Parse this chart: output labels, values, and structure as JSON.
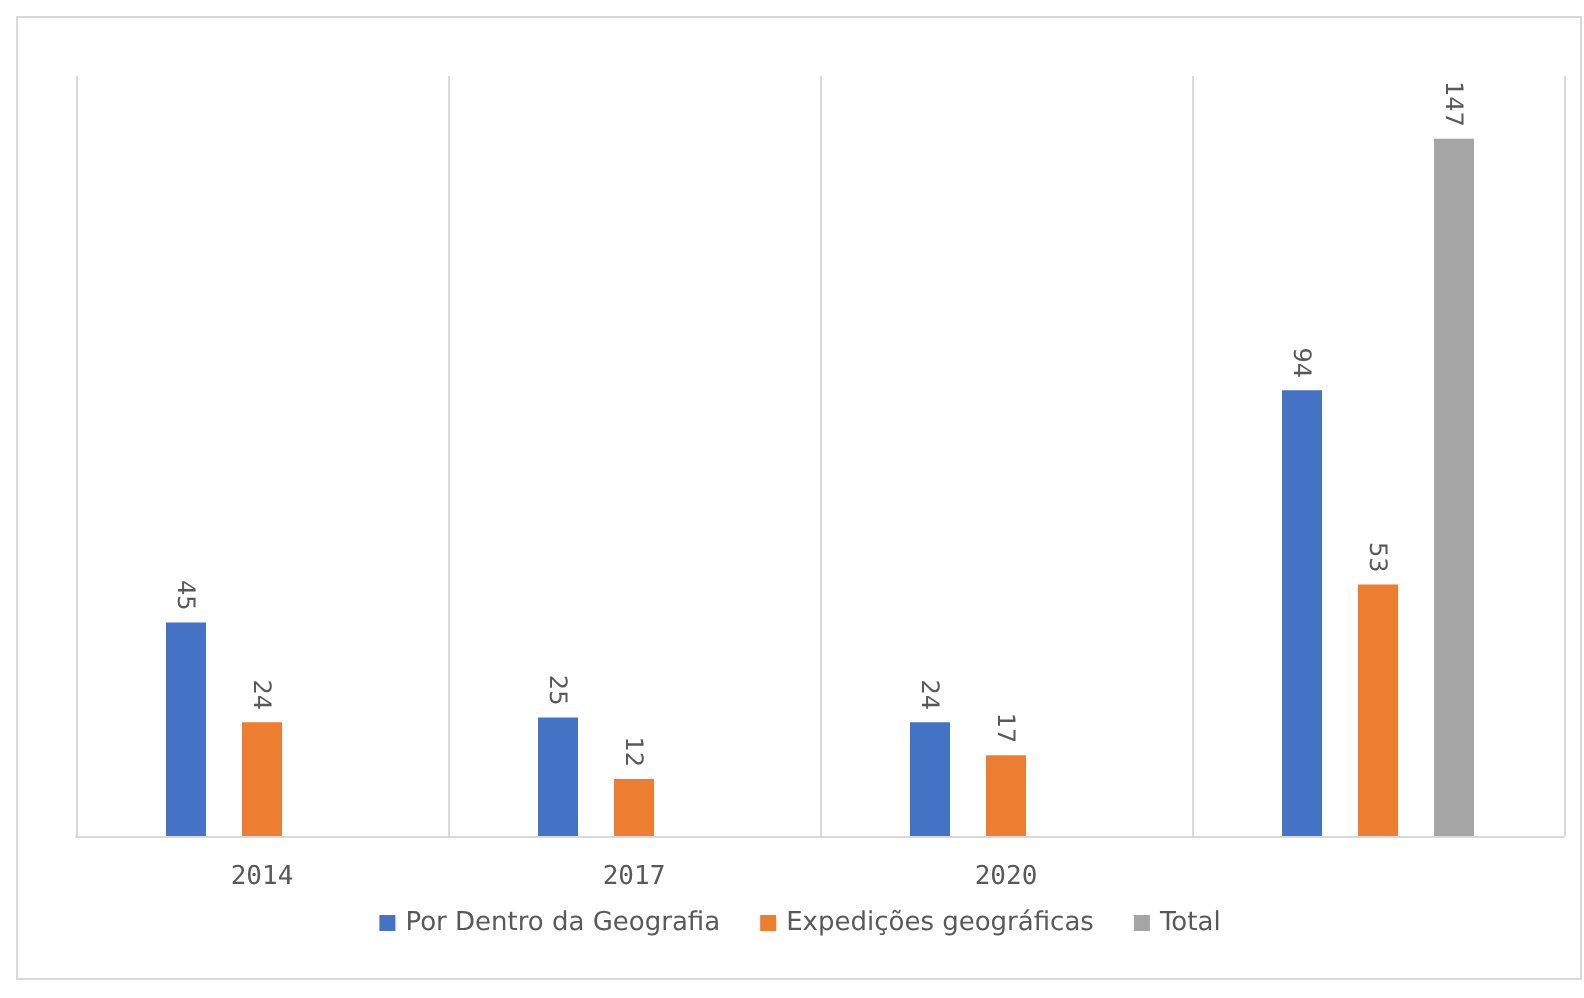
{
  "chart_data": {
    "type": "bar",
    "categories": [
      "2014",
      "2017",
      "2020",
      null
    ],
    "series": [
      {
        "name": "Por Dentro da Geografia",
        "color": "#4472c4",
        "values": [
          45,
          25,
          24,
          94
        ]
      },
      {
        "name": "Expedições geográficas",
        "color": "#ed7d31",
        "values": [
          24,
          12,
          17,
          53
        ]
      },
      {
        "name": "Total",
        "color": "#a5a5a5",
        "values": [
          null,
          null,
          null,
          147
        ]
      }
    ],
    "data_labels": true,
    "grid": "x",
    "legend": "bottom"
  }
}
